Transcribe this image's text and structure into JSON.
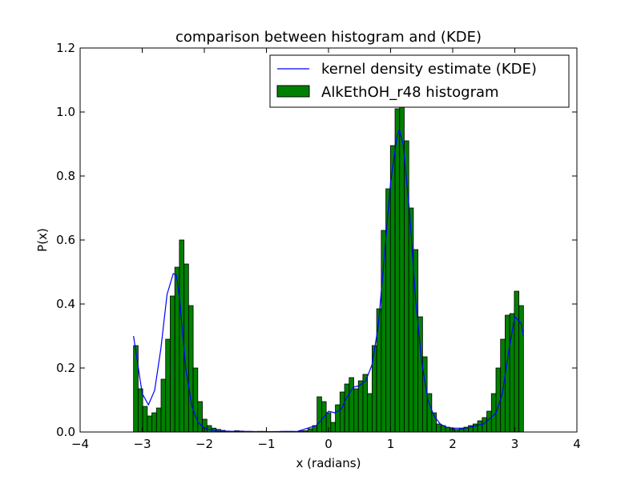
{
  "chart_data": {
    "type": "bar",
    "title": "comparison between histogram and (KDE)",
    "xlabel": "x (radians)",
    "ylabel": "P(x)",
    "xlim": [
      -4,
      4
    ],
    "ylim": [
      0,
      1.2
    ],
    "xticks": [
      "−4",
      "−3",
      "−2",
      "−1",
      "0",
      "1",
      "2",
      "3",
      "4"
    ],
    "yticks": [
      "0.0",
      "0.2",
      "0.4",
      "0.6",
      "0.8",
      "1.0",
      "1.2"
    ],
    "grid": false,
    "legend_position": "top-right",
    "legend": [
      {
        "label": "kernel density estimate (KDE)",
        "kind": "line"
      },
      {
        "label": "AlkEthOH_r48 histogram",
        "kind": "patch"
      }
    ],
    "colors": {
      "histogram": "#008000",
      "kde": "#0000ff"
    },
    "series": [
      {
        "name": "AlkEthOH_r48 histogram",
        "kind": "histogram",
        "x_start": -3.14,
        "x_end": 3.14,
        "values": [
          0.27,
          0.135,
          0.08,
          0.05,
          0.06,
          0.075,
          0.165,
          0.29,
          0.425,
          0.515,
          0.6,
          0.525,
          0.395,
          0.2,
          0.095,
          0.04,
          0.02,
          0.012,
          0.008,
          0.005,
          0.003,
          0.002,
          0.004,
          0.003,
          0.002,
          0.002,
          0.001,
          0.002,
          0.002,
          0.001,
          0.001,
          0.001,
          0.002,
          0.002,
          0.002,
          0.001,
          0.003,
          0.004,
          0.01,
          0.02,
          0.11,
          0.095,
          0.06,
          0.03,
          0.085,
          0.125,
          0.15,
          0.17,
          0.135,
          0.16,
          0.18,
          0.12,
          0.27,
          0.385,
          0.63,
          0.76,
          0.895,
          1.01,
          1.04,
          0.91,
          0.7,
          0.57,
          0.36,
          0.235,
          0.12,
          0.06,
          0.025,
          0.02,
          0.015,
          0.01,
          0.008,
          0.01,
          0.015,
          0.02,
          0.025,
          0.035,
          0.045,
          0.065,
          0.12,
          0.2,
          0.29,
          0.365,
          0.37,
          0.44,
          0.395
        ]
      },
      {
        "name": "kernel density estimate (KDE)",
        "kind": "line",
        "x": [
          -3.14,
          -3.0,
          -2.9,
          -2.8,
          -2.7,
          -2.6,
          -2.5,
          -2.45,
          -2.4,
          -2.3,
          -2.2,
          -2.1,
          -2.0,
          -1.9,
          -1.8,
          -1.5,
          -1.0,
          -0.5,
          -0.2,
          -0.1,
          0.0,
          0.1,
          0.2,
          0.3,
          0.4,
          0.5,
          0.6,
          0.7,
          0.8,
          0.9,
          1.0,
          1.1,
          1.14,
          1.2,
          1.3,
          1.4,
          1.5,
          1.6,
          1.7,
          1.8,
          1.9,
          2.0,
          2.2,
          2.5,
          2.7,
          2.8,
          2.9,
          3.0,
          3.1,
          3.14
        ],
        "y": [
          0.3,
          0.12,
          0.085,
          0.13,
          0.26,
          0.43,
          0.495,
          0.49,
          0.42,
          0.2,
          0.08,
          0.03,
          0.012,
          0.006,
          0.003,
          0.002,
          0.001,
          0.002,
          0.02,
          0.04,
          0.065,
          0.06,
          0.07,
          0.11,
          0.14,
          0.145,
          0.16,
          0.21,
          0.33,
          0.55,
          0.78,
          0.92,
          0.945,
          0.9,
          0.7,
          0.42,
          0.22,
          0.1,
          0.05,
          0.025,
          0.015,
          0.012,
          0.012,
          0.025,
          0.06,
          0.12,
          0.25,
          0.36,
          0.34,
          0.3
        ]
      }
    ]
  }
}
